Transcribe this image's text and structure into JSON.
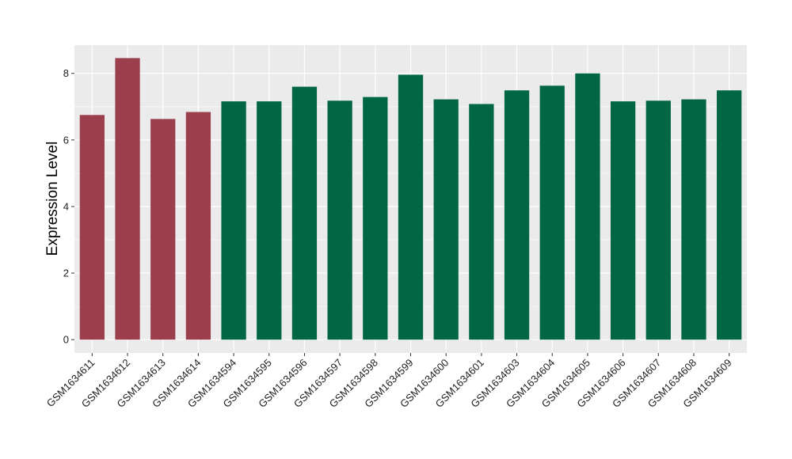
{
  "chart_data": {
    "type": "bar",
    "ylabel": "Expression Level",
    "xlabel": "",
    "title": "",
    "ylim": [
      -0.4,
      8.85
    ],
    "yticks": [
      0,
      2,
      4,
      6,
      8
    ],
    "grid": true,
    "categories": [
      "GSM1634611",
      "GSM1634612",
      "GSM1634613",
      "GSM1634614",
      "GSM1634594",
      "GSM1634595",
      "GSM1634596",
      "GSM1634597",
      "GSM1634598",
      "GSM1634599",
      "GSM1634600",
      "GSM1634601",
      "GSM1634603",
      "GSM1634604",
      "GSM1634605",
      "GSM1634606",
      "GSM1634607",
      "GSM1634608",
      "GSM1634609"
    ],
    "values": [
      6.75,
      8.46,
      6.63,
      6.84,
      7.16,
      7.16,
      7.6,
      7.18,
      7.29,
      7.96,
      7.22,
      7.08,
      7.49,
      7.63,
      8.0,
      7.16,
      7.18,
      7.22,
      7.49
    ],
    "groups": [
      0,
      0,
      0,
      0,
      1,
      1,
      1,
      1,
      1,
      1,
      1,
      1,
      1,
      1,
      1,
      1,
      1,
      1,
      1
    ],
    "colors": [
      "#9b3f4d",
      "#006644"
    ],
    "panel_color": "#ebebeb",
    "grid_color": "#ffffff"
  }
}
